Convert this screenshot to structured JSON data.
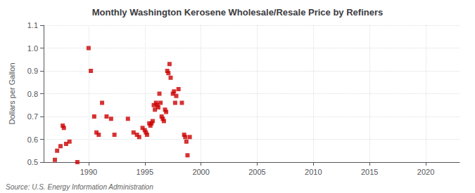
{
  "chart_data": {
    "type": "scatter",
    "title": "Monthly Washington Kerosene Wholesale/Resale Price by Refiners",
    "ylabel": "Dollars per Gallon",
    "source": "Source: U.S. Energy Information Administration",
    "xlim": [
      1986,
      2023
    ],
    "ylim": [
      0.5,
      1.1
    ],
    "xticks": [
      1990,
      1995,
      2000,
      2005,
      2010,
      2015,
      2020
    ],
    "yticks": [
      0.5,
      0.6,
      0.7,
      0.8,
      0.9,
      {
        "value": 1,
        "label": "1.0"
      },
      1.1
    ],
    "color": "#cc0000",
    "marker": "square",
    "grid": true,
    "x": [
      1987.0,
      1987.2,
      1987.5,
      1987.7,
      1987.8,
      1988.0,
      1988.3,
      1989.0,
      1990.0,
      1990.2,
      1990.5,
      1990.7,
      1990.9,
      1991.2,
      1991.6,
      1992.0,
      1992.3,
      1993.5,
      1994.0,
      1994.3,
      1994.5,
      1994.8,
      1995.0,
      1995.1,
      1995.2,
      1995.4,
      1995.5,
      1995.6,
      1995.7,
      1995.8,
      1995.9,
      1996.0,
      1996.1,
      1996.2,
      1996.3,
      1996.4,
      1996.5,
      1996.6,
      1996.7,
      1996.8,
      1996.9,
      1997.0,
      1997.1,
      1997.2,
      1997.3,
      1997.5,
      1997.6,
      1997.7,
      1997.8,
      1998.0,
      1998.3,
      1998.5,
      1998.6,
      1998.7,
      1998.8,
      1999.0
    ],
    "values": [
      0.51,
      0.55,
      0.57,
      0.66,
      0.65,
      0.58,
      0.59,
      0.5,
      1.0,
      0.9,
      0.7,
      0.63,
      0.62,
      0.76,
      0.7,
      0.69,
      0.62,
      0.69,
      0.63,
      0.62,
      0.61,
      0.65,
      0.64,
      0.63,
      0.62,
      0.67,
      0.66,
      0.67,
      0.68,
      0.75,
      0.73,
      0.76,
      0.75,
      0.74,
      0.8,
      0.76,
      0.7,
      0.69,
      0.68,
      0.73,
      0.72,
      0.9,
      0.89,
      0.93,
      0.87,
      0.8,
      0.81,
      0.76,
      0.79,
      0.82,
      0.76,
      0.62,
      0.61,
      0.59,
      0.53,
      0.61
    ]
  }
}
